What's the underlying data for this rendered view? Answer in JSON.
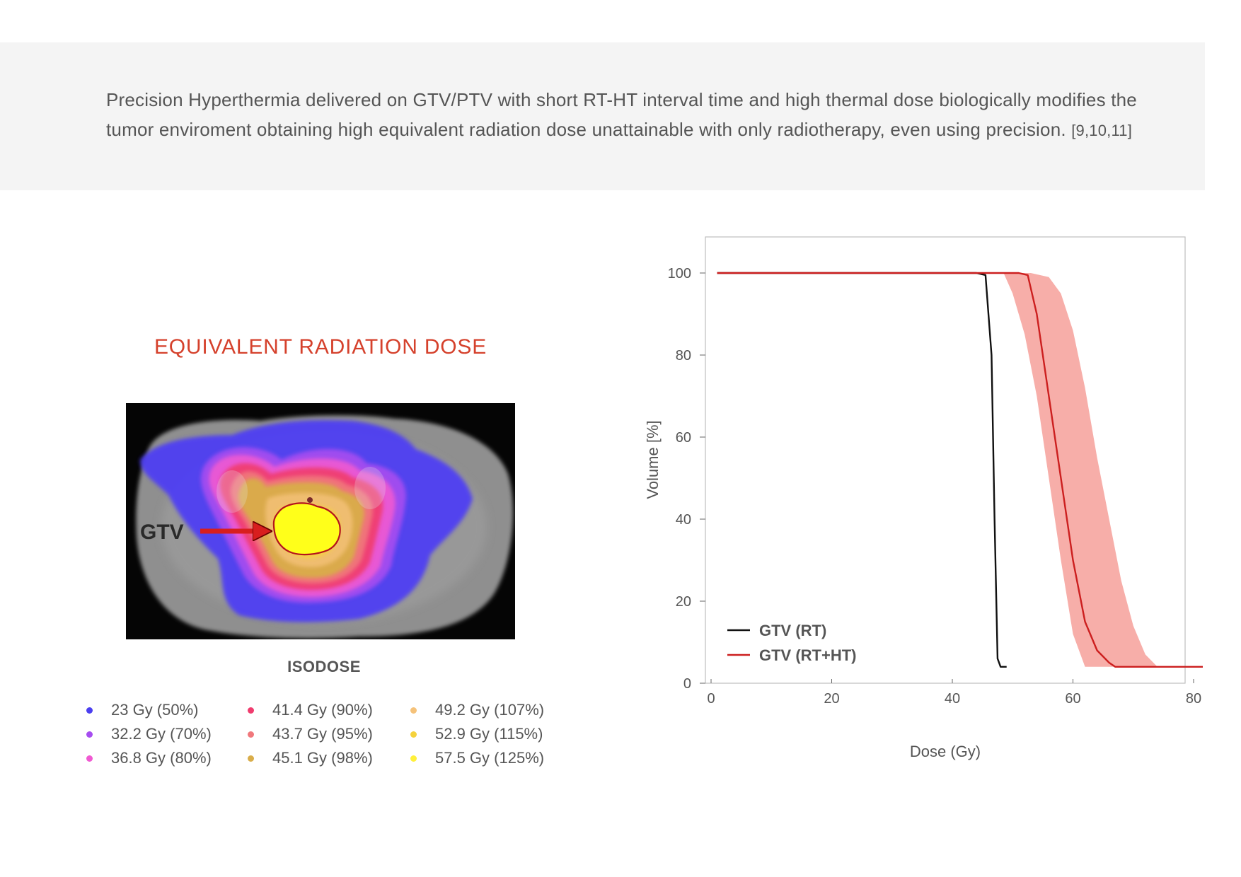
{
  "intro": {
    "text": "Precision Hyperthermia delivered on GTV/PTV with short RT-HT interval time and high thermal dose biologically modifies the tumor enviroment obtaining high equivalent radiation dose unattainable with only radiotherapy, even using precision.",
    "refs": "[9,10,11]"
  },
  "figure": {
    "title": "EQUIVALENT RADIATION DOSE",
    "scan_label": "GTV",
    "isodose_title": "ISODOSE",
    "isodose_legend": [
      {
        "label": "23 Gy (50%)",
        "color": "#4b3ff0"
      },
      {
        "label": "32.2 Gy (70%)",
        "color": "#a64df0"
      },
      {
        "label": "36.8 Gy (80%)",
        "color": "#f05ad2"
      },
      {
        "label": "41.4 Gy (90%)",
        "color": "#f03c6e"
      },
      {
        "label": "43.7 Gy (95%)",
        "color": "#f0787c"
      },
      {
        "label": "45.1 Gy (98%)",
        "color": "#d9ad4a"
      },
      {
        "label": "49.2 Gy (107%)",
        "color": "#f5c27a"
      },
      {
        "label": "52.9 Gy (115%)",
        "color": "#f5d23c"
      },
      {
        "label": "57.5 Gy (125%)",
        "color": "#fff03a"
      }
    ]
  },
  "chart_data": {
    "type": "line",
    "title": "",
    "xlabel": "Dose (Gy)",
    "ylabel": "Volume [%]",
    "xlim": [
      0,
      84
    ],
    "ylim": [
      0,
      100
    ],
    "xticks": [
      0,
      20,
      40,
      60,
      80
    ],
    "yticks": [
      0,
      20,
      40,
      60,
      80,
      100
    ],
    "legend_position": "bottom-left",
    "series": [
      {
        "name": "GTV (RT)",
        "color": "#111111",
        "x": [
          1,
          44,
          45.5,
          46.5,
          47,
          47.5,
          48,
          49
        ],
        "y": [
          100,
          100,
          99.5,
          80,
          40,
          6,
          4,
          4
        ]
      },
      {
        "name": "GTV (RT+HT)",
        "color": "#cc1f1f",
        "x": [
          1,
          51,
          52.5,
          54,
          56,
          58,
          60,
          62,
          64,
          66,
          67,
          84
        ],
        "y": [
          100,
          100,
          99.5,
          90,
          70,
          50,
          30,
          15,
          8,
          5,
          4,
          4
        ]
      }
    ],
    "band": {
      "series": "GTV (RT+HT)",
      "color": "#f7aaa4",
      "upper": {
        "x": [
          51,
          53,
          56,
          58,
          60,
          62,
          64,
          66,
          68,
          70,
          72,
          74
        ],
        "y": [
          100,
          100,
          99,
          95,
          86,
          72,
          55,
          40,
          25,
          14,
          7,
          4
        ]
      },
      "lower": {
        "x": [
          48.5,
          50,
          52,
          54,
          56,
          58,
          60,
          62
        ],
        "y": [
          100,
          95,
          85,
          70,
          50,
          30,
          12,
          4
        ]
      }
    }
  }
}
